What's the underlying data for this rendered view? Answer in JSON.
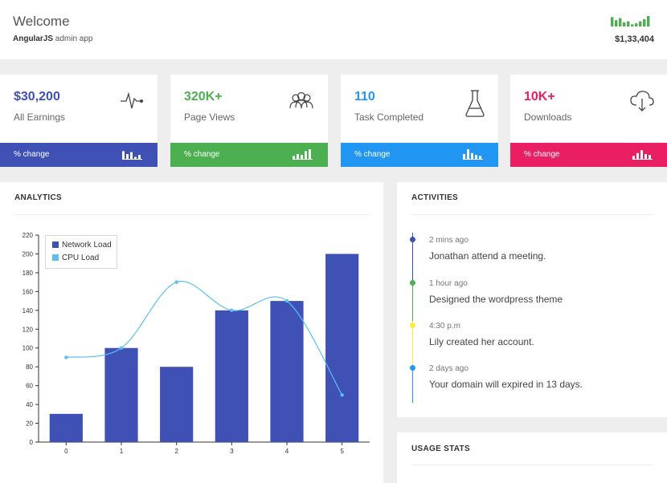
{
  "header": {
    "title": "Welcome",
    "subtitle_bold": "AngularJS",
    "subtitle_rest": " admin app",
    "total": "$1,33,404",
    "spark_color": "#4caf50",
    "spark_heights": [
      0.9,
      0.6,
      0.8,
      0.4,
      0.5,
      0.2,
      0.3,
      0.5,
      0.7,
      1.0
    ]
  },
  "cards": [
    {
      "value": "$30,200",
      "label": "All Earnings",
      "change": "% change",
      "color": "#3f51b5",
      "icon": "pulse-icon",
      "mini": [
        0.8,
        0.5,
        0.7,
        0.2,
        0.4
      ]
    },
    {
      "value": "320K+",
      "label": "Page Views",
      "change": "% change",
      "color": "#4caf50",
      "icon": "users-icon",
      "mini": [
        0.3,
        0.5,
        0.4,
        0.8,
        1.0
      ]
    },
    {
      "value": "110",
      "label": "Task Completed",
      "change": "% change",
      "color": "#2196f3",
      "icon": "flask-icon",
      "mini": [
        0.5,
        1.0,
        0.6,
        0.4,
        0.3
      ]
    },
    {
      "value": "10K+",
      "label": "Downloads",
      "change": "% change",
      "color": "#e91e63",
      "icon": "cloud-download-icon",
      "mini": [
        0.3,
        0.6,
        0.9,
        0.5,
        0.4
      ]
    }
  ],
  "analytics": {
    "title": "ANALYTICS"
  },
  "chart_data": {
    "type": "bar",
    "categories": [
      "0",
      "1",
      "2",
      "3",
      "4",
      "5"
    ],
    "series": [
      {
        "name": "Network Load",
        "type": "bar",
        "color": "#3f51b5",
        "values": [
          30,
          100,
          80,
          140,
          150,
          200
        ]
      },
      {
        "name": "CPU Load",
        "type": "line",
        "color": "#5bc0f0",
        "values": [
          90,
          100,
          170,
          140,
          150,
          50
        ]
      }
    ],
    "ylim": [
      0,
      220
    ],
    "yticks": [
      0,
      20,
      40,
      60,
      80,
      100,
      120,
      140,
      160,
      180,
      200,
      220
    ],
    "legend": "top-left",
    "grid": false
  },
  "activities": {
    "title": "ACTIVITIES",
    "items": [
      {
        "time": "2 mins ago",
        "text": "Jonathan attend a meeting.",
        "color": "#3f51b5"
      },
      {
        "time": "1 hour ago",
        "text": "Designed the wordpress theme",
        "color": "#4caf50"
      },
      {
        "time": "4:30 p.m",
        "text": "Lily created her account.",
        "color": "#ffeb3b"
      },
      {
        "time": "2 days ago",
        "text": "Your domain will expired in 13 days.",
        "color": "#2196f3"
      }
    ]
  },
  "usage": {
    "title": "USAGE STATS"
  }
}
